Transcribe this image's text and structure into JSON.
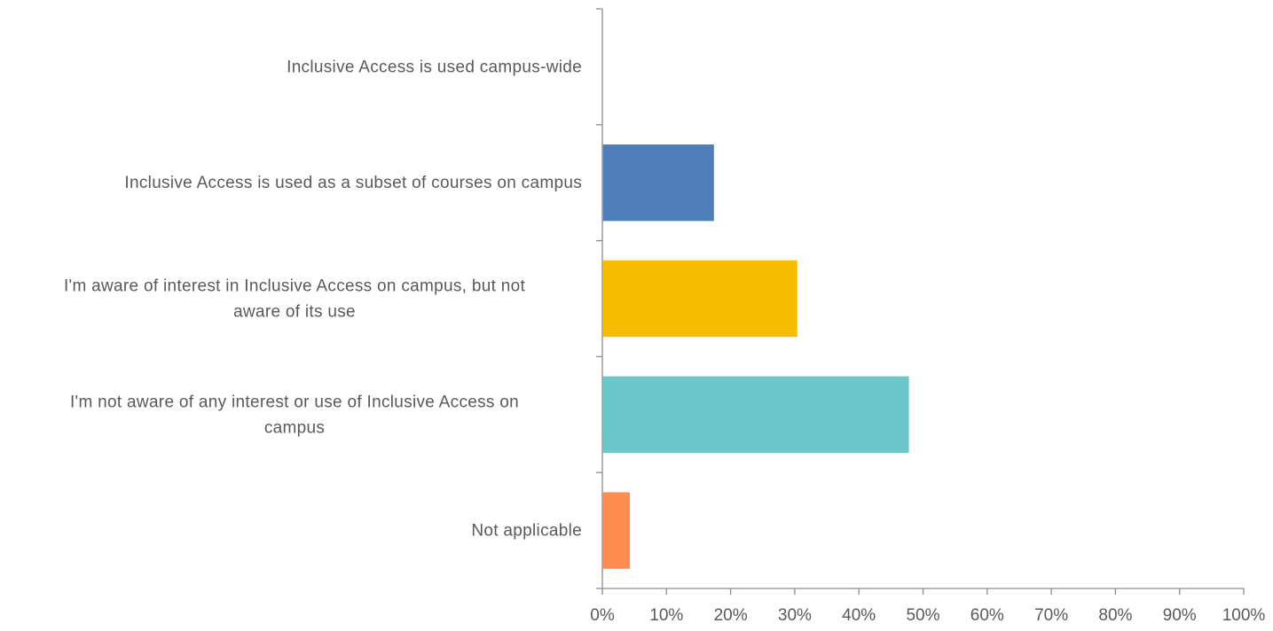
{
  "chart_data": {
    "type": "bar",
    "orientation": "horizontal",
    "categories": [
      "Inclusive Access is used campus-wide",
      "Inclusive Access is used as a subset of courses on campus",
      "I'm aware of interest in Inclusive Access on campus, but not aware of its use",
      "I'm not aware of any interest or use of Inclusive Access on campus",
      "Not applicable"
    ],
    "category_lines": [
      [
        "Inclusive Access is used campus-wide"
      ],
      [
        "Inclusive Access is used as a subset of courses on campus"
      ],
      [
        "I'm aware of interest in Inclusive Access on campus, but not",
        "aware of its use"
      ],
      [
        "I'm not aware of any interest or use of Inclusive Access on",
        "campus"
      ],
      [
        "Not applicable"
      ]
    ],
    "values": [
      0,
      17.4,
      30.4,
      47.8,
      4.3
    ],
    "colors": [
      "#4f7db8",
      "#4f7db8",
      "#f7be00",
      "#6bc7ca",
      "#ff8c50"
    ],
    "xlim": [
      0,
      100
    ],
    "xticks": [
      "0%",
      "10%",
      "20%",
      "30%",
      "40%",
      "50%",
      "60%",
      "70%",
      "80%",
      "90%",
      "100%"
    ],
    "title": "",
    "xlabel": "",
    "ylabel": "",
    "grid": false,
    "legend": "none"
  }
}
